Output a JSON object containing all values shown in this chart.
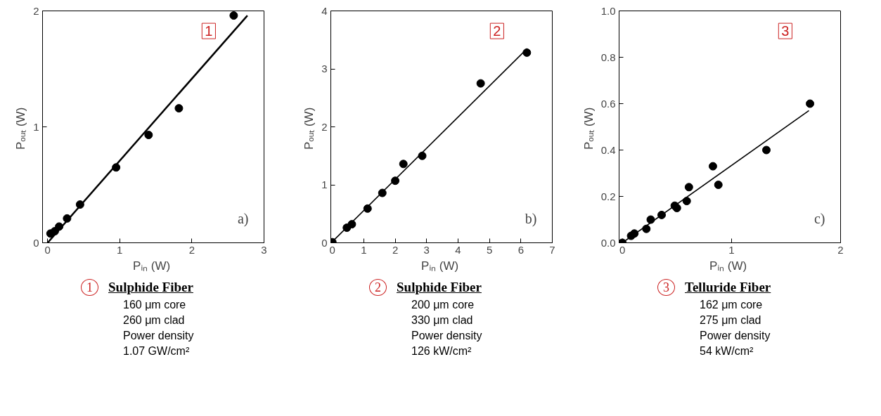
{
  "chart_data": [
    {
      "type": "scatter",
      "xlabel": "Pᵢₙ  (W)",
      "ylabel": "Pₒᵤₜ  (W)",
      "xlim": [
        -0.07,
        3.0
      ],
      "ylim": [
        0,
        2.0
      ],
      "xticks": [
        0,
        1,
        2,
        3
      ],
      "yticks": [
        0,
        1,
        2
      ],
      "grid": false,
      "annotations": [
        "1",
        "a)",
        "1",
        "Sulphide Fiber",
        "160 μm core",
        "260 μm clad",
        "Power density",
        "1.07 GW/cm²"
      ],
      "series": [
        {
          "marker": "circle",
          "color": "#000000",
          "x": [
            0.04,
            0.1,
            0.16,
            0.27,
            0.45,
            0.95,
            1.4,
            1.82,
            2.58
          ],
          "values": [
            0.08,
            0.1,
            0.14,
            0.21,
            0.33,
            0.65,
            0.93,
            1.16,
            1.96
          ]
        },
        {
          "type": "line",
          "color": "#000000",
          "x": [
            0,
            2.77
          ],
          "values": [
            0.0,
            1.96
          ]
        }
      ]
    },
    {
      "type": "scatter",
      "xlabel": "Pᵢₙ  (W)",
      "ylabel": "Pₒᵤₜ  (W)",
      "xlim": [
        -0.05,
        7
      ],
      "ylim": [
        0,
        4
      ],
      "xticks": [
        0,
        1,
        2,
        3,
        4,
        5,
        6,
        7
      ],
      "yticks": [
        0,
        1,
        2,
        3,
        4
      ],
      "grid": false,
      "annotations": [
        "2",
        "b)",
        "2",
        "Sulphide Fiber",
        "200 μm core",
        "330 μm clad",
        "Power density",
        "126 kW/cm²"
      ],
      "series": [
        {
          "marker": "circle",
          "color": "#000000",
          "x": [
            0,
            0.46,
            0.62,
            1.12,
            1.59,
            2.0,
            2.26,
            2.86,
            4.72,
            6.19
          ],
          "values": [
            0.01,
            0.26,
            0.32,
            0.59,
            0.86,
            1.07,
            1.36,
            1.5,
            2.75,
            3.28
          ]
        },
        {
          "type": "line",
          "color": "#000000",
          "x": [
            0,
            6.2
          ],
          "values": [
            0.02,
            3.35
          ]
        }
      ]
    },
    {
      "type": "scatter",
      "xlabel": "Pᵢₙ  (W)",
      "ylabel": "Pₒᵤₜ  (W)",
      "xlim": [
        -0.03,
        2
      ],
      "ylim": [
        0,
        1.0
      ],
      "xticks": [
        0,
        1,
        2
      ],
      "yticks": [
        {
          "value": 0,
          "label": "0.0"
        },
        0.2,
        0.4,
        0.6,
        0.8,
        {
          "value": 1,
          "label": "1.0"
        }
      ],
      "grid": false,
      "annotations": [
        "3",
        "c)",
        "3",
        "Telluride Fiber",
        "162 μm core",
        "275 μm clad",
        "Power density",
        "54 kW/cm²"
      ],
      "series": [
        {
          "marker": "circle",
          "color": "#000000",
          "x": [
            0,
            0.08,
            0.11,
            0.22,
            0.26,
            0.36,
            0.48,
            0.5,
            0.59,
            0.61,
            0.83,
            0.88,
            1.32,
            1.72
          ],
          "values": [
            0.0,
            0.03,
            0.04,
            0.06,
            0.1,
            0.12,
            0.16,
            0.15,
            0.18,
            0.24,
            0.33,
            0.25,
            0.4,
            0.6
          ]
        },
        {
          "type": "line",
          "color": "#000000",
          "x": [
            0,
            1.71
          ],
          "values": [
            0.0,
            0.57
          ]
        }
      ]
    }
  ]
}
